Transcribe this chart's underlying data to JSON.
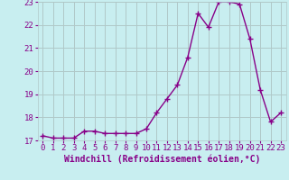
{
  "x": [
    0,
    1,
    2,
    3,
    4,
    5,
    6,
    7,
    8,
    9,
    10,
    11,
    12,
    13,
    14,
    15,
    16,
    17,
    18,
    19,
    20,
    21,
    22,
    23
  ],
  "y": [
    17.2,
    17.1,
    17.1,
    17.1,
    17.4,
    17.4,
    17.3,
    17.3,
    17.3,
    17.3,
    17.5,
    18.2,
    18.8,
    19.4,
    20.6,
    22.5,
    21.9,
    23.0,
    23.0,
    22.9,
    21.4,
    19.2,
    17.8,
    18.2
  ],
  "line_color": "#880088",
  "marker": "+",
  "marker_size": 4,
  "marker_linewidth": 1.0,
  "bg_color": "#c8eef0",
  "grid_color": "#b0c8c8",
  "xlabel": "Windchill (Refroidissement éolien,°C)",
  "ylim": [
    17,
    23
  ],
  "xlim": [
    -0.5,
    23.5
  ],
  "yticks": [
    17,
    18,
    19,
    20,
    21,
    22,
    23
  ],
  "xticks": [
    0,
    1,
    2,
    3,
    4,
    5,
    6,
    7,
    8,
    9,
    10,
    11,
    12,
    13,
    14,
    15,
    16,
    17,
    18,
    19,
    20,
    21,
    22,
    23
  ],
  "tick_color": "#880088",
  "label_color": "#880088",
  "font_size": 6.5,
  "xlabel_fontsize": 7,
  "linewidth": 1.0
}
